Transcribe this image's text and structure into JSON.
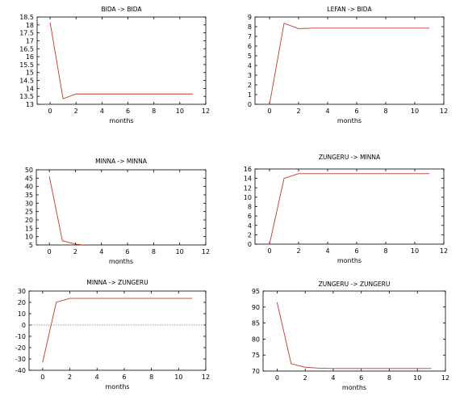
{
  "colors": {
    "series": "#c0392b",
    "axis": "#000000",
    "zero_line": "#777777"
  },
  "chart_data": [
    {
      "type": "line",
      "title": "BIDA -> BIDA",
      "xlabel": "months",
      "ylabel": "",
      "xlim": [
        -1,
        12
      ],
      "ylim": [
        13,
        18.5
      ],
      "xticks": [
        0,
        2,
        4,
        6,
        8,
        10,
        12
      ],
      "yticks": [
        13,
        13.5,
        14,
        14.5,
        15,
        15.5,
        16,
        16.5,
        17,
        17.5,
        18,
        18.5
      ],
      "series": [
        {
          "x": [
            0,
            1,
            2,
            3,
            4,
            5,
            6,
            7,
            8,
            9,
            10,
            11
          ],
          "values": [
            18.15,
            13.35,
            13.65,
            13.65,
            13.65,
            13.65,
            13.65,
            13.65,
            13.65,
            13.65,
            13.65,
            13.65
          ]
        }
      ]
    },
    {
      "type": "line",
      "title": "LEFAN -> BIDA",
      "xlabel": "months",
      "ylabel": "",
      "xlim": [
        -1,
        12
      ],
      "ylim": [
        0,
        9
      ],
      "xticks": [
        0,
        2,
        4,
        6,
        8,
        10,
        12
      ],
      "yticks": [
        0,
        1,
        2,
        3,
        4,
        5,
        6,
        7,
        8,
        9
      ],
      "series": [
        {
          "x": [
            0,
            1,
            2,
            3,
            4,
            5,
            6,
            7,
            8,
            9,
            10,
            11
          ],
          "values": [
            0,
            8.35,
            7.8,
            7.85,
            7.85,
            7.85,
            7.85,
            7.85,
            7.85,
            7.85,
            7.85,
            7.85
          ]
        }
      ]
    },
    {
      "type": "line",
      "title": "MINNA -> MINNA",
      "xlabel": "months",
      "ylabel": "",
      "xlim": [
        -1,
        12
      ],
      "ylim": [
        5,
        50
      ],
      "xticks": [
        0,
        2,
        4,
        6,
        8,
        10,
        12
      ],
      "yticks": [
        5,
        10,
        15,
        20,
        25,
        30,
        35,
        40,
        45,
        50
      ],
      "series": [
        {
          "x": [
            0,
            1,
            2,
            3,
            4,
            5,
            6,
            7,
            8,
            9,
            10,
            11
          ],
          "values": [
            46,
            7.5,
            5.5,
            4.6,
            4.5,
            4.5,
            4.5,
            4.5,
            4.5,
            4.5,
            4.5,
            4.5
          ]
        }
      ]
    },
    {
      "type": "line",
      "title": "ZUNGERU -> MINNA",
      "xlabel": "months",
      "ylabel": "",
      "xlim": [
        -1,
        12
      ],
      "ylim": [
        0,
        16
      ],
      "xticks": [
        0,
        2,
        4,
        6,
        8,
        10,
        12
      ],
      "yticks": [
        0,
        2,
        4,
        6,
        8,
        10,
        12,
        14,
        16
      ],
      "series": [
        {
          "x": [
            0,
            1,
            2,
            3,
            4,
            5,
            6,
            7,
            8,
            9,
            10,
            11
          ],
          "values": [
            0,
            14,
            15,
            15,
            15,
            15,
            15,
            15,
            15,
            15,
            15,
            15
          ]
        }
      ]
    },
    {
      "type": "line",
      "title": "MINNA -> ZUNGERU",
      "xlabel": "months",
      "ylabel": "",
      "xlim": [
        -1,
        12
      ],
      "ylim": [
        -40,
        30
      ],
      "xticks": [
        0,
        2,
        4,
        6,
        8,
        10,
        12
      ],
      "yticks": [
        -40,
        -30,
        -20,
        -10,
        0,
        10,
        20,
        30
      ],
      "zero_line": true,
      "series": [
        {
          "x": [
            0,
            1,
            2,
            3,
            4,
            5,
            6,
            7,
            8,
            9,
            10,
            11
          ],
          "values": [
            -33,
            20,
            23.5,
            23.5,
            23.5,
            23.5,
            23.5,
            23.5,
            23.5,
            23.5,
            23.5,
            23.5
          ]
        }
      ]
    },
    {
      "type": "line",
      "title": "ZUNGERU -> ZUNGERU",
      "xlabel": "months",
      "ylabel": "",
      "xlim": [
        -1,
        12
      ],
      "ylim": [
        70,
        95
      ],
      "xticks": [
        0,
        2,
        4,
        6,
        8,
        10,
        12
      ],
      "yticks": [
        70,
        75,
        80,
        85,
        90,
        95
      ],
      "series": [
        {
          "x": [
            0,
            1,
            2,
            3,
            4,
            5,
            6,
            7,
            8,
            9,
            10,
            11
          ],
          "values": [
            91.5,
            72.3,
            71.2,
            70.9,
            70.8,
            70.8,
            70.8,
            70.8,
            70.8,
            70.8,
            70.8,
            70.8
          ]
        }
      ]
    }
  ]
}
